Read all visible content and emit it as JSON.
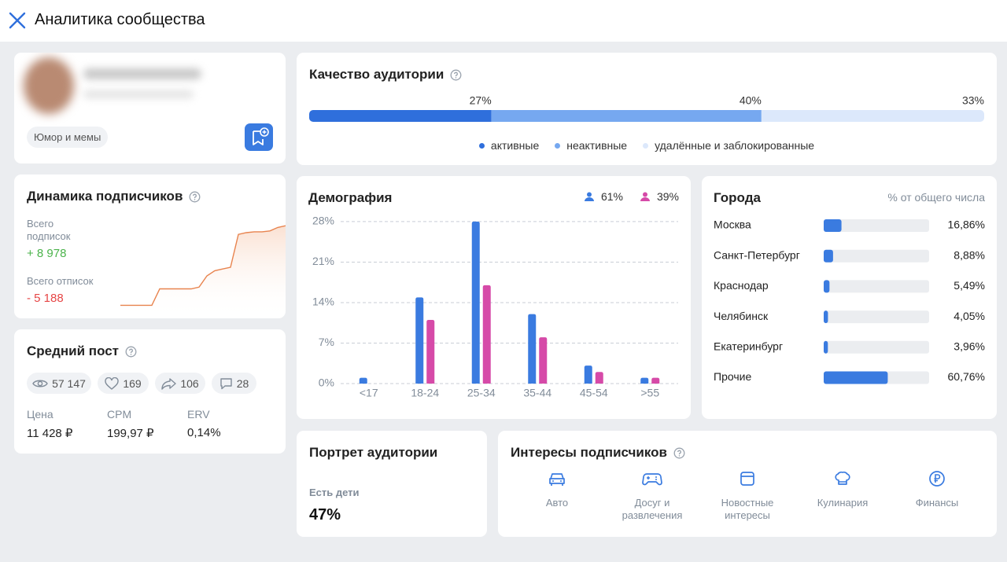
{
  "header": {
    "title": "Аналитика сообщества"
  },
  "profile": {
    "tag": "Юмор и мемы"
  },
  "quality": {
    "title": "Качество аудитории",
    "type": "stacked-bar",
    "categories": [
      "активные",
      "неактивные",
      "удалённые и заблокированные"
    ],
    "values": [
      27,
      40,
      33
    ],
    "value_labels": [
      "27%",
      "40%",
      "33%"
    ],
    "colors": [
      "#2f6fdc",
      "#76a8f0",
      "#dce8fb"
    ]
  },
  "dynamics": {
    "title": "Динамика подписчиков",
    "subscribed_label": "Всего подписок",
    "subscribed": "+ 8 978",
    "unsubscribed_label": "Всего отписок",
    "unsubscribed": "- 5 188",
    "trend": {
      "type": "area",
      "values": [
        6,
        6,
        6,
        6,
        6,
        25,
        25,
        25,
        25,
        25,
        27,
        40,
        46,
        48,
        50,
        88,
        90,
        91,
        91,
        92,
        96,
        98
      ],
      "ylim": [
        0,
        100
      ],
      "color": "#e8844f"
    }
  },
  "avg_post": {
    "title": "Средний пост",
    "stats": [
      "57 147",
      "169",
      "106",
      "28"
    ],
    "metrics": [
      {
        "label": "Цена",
        "value": "11 428 ₽"
      },
      {
        "label": "CPM",
        "value": "199,97 ₽"
      },
      {
        "label": "ERV",
        "value": "0,14%"
      }
    ]
  },
  "demography": {
    "title": "Демография",
    "type": "bar",
    "categories": [
      "<17",
      "18-24",
      "25-34",
      "35-44",
      "45-54",
      ">55"
    ],
    "series": [
      {
        "name": "61%",
        "color": "#3a7be0",
        "values": [
          1,
          14.9,
          28,
          12,
          3.1,
          1
        ]
      },
      {
        "name": "39%",
        "color": "#d64aa8",
        "values": [
          0,
          11,
          17,
          8,
          2,
          1
        ]
      }
    ],
    "ylim": [
      0,
      29
    ],
    "yticks": [
      {
        "value": 0,
        "label": "0%"
      },
      {
        "value": 7,
        "label": "7%"
      },
      {
        "value": 14,
        "label": "14%"
      },
      {
        "value": 21,
        "label": "21%"
      },
      {
        "value": 28,
        "label": "28%"
      }
    ],
    "grid": true
  },
  "cities": {
    "title": "Города",
    "subtitle": "% от общего числа",
    "type": "bar-horizontal",
    "categories": [
      "Москва",
      "Санкт-Петербург",
      "Краснодар",
      "Челябинск",
      "Екатеринбург",
      "Прочие"
    ],
    "values": [
      16.86,
      8.88,
      5.49,
      4.05,
      3.96,
      60.76
    ],
    "value_labels": [
      "16,86%",
      "8,88%",
      "5,49%",
      "4,05%",
      "3,96%",
      "60,76%"
    ],
    "xlim": [
      0,
      100
    ],
    "color": "#3a7be0"
  },
  "portrait": {
    "title": "Портрет аудитории",
    "label": "Есть дети",
    "value": "47%"
  },
  "interests": {
    "title": "Интересы подписчиков",
    "items": [
      "Авто",
      "Досуг и развлечения",
      "Новостные интересы",
      "Кулинария",
      "Финансы"
    ]
  }
}
